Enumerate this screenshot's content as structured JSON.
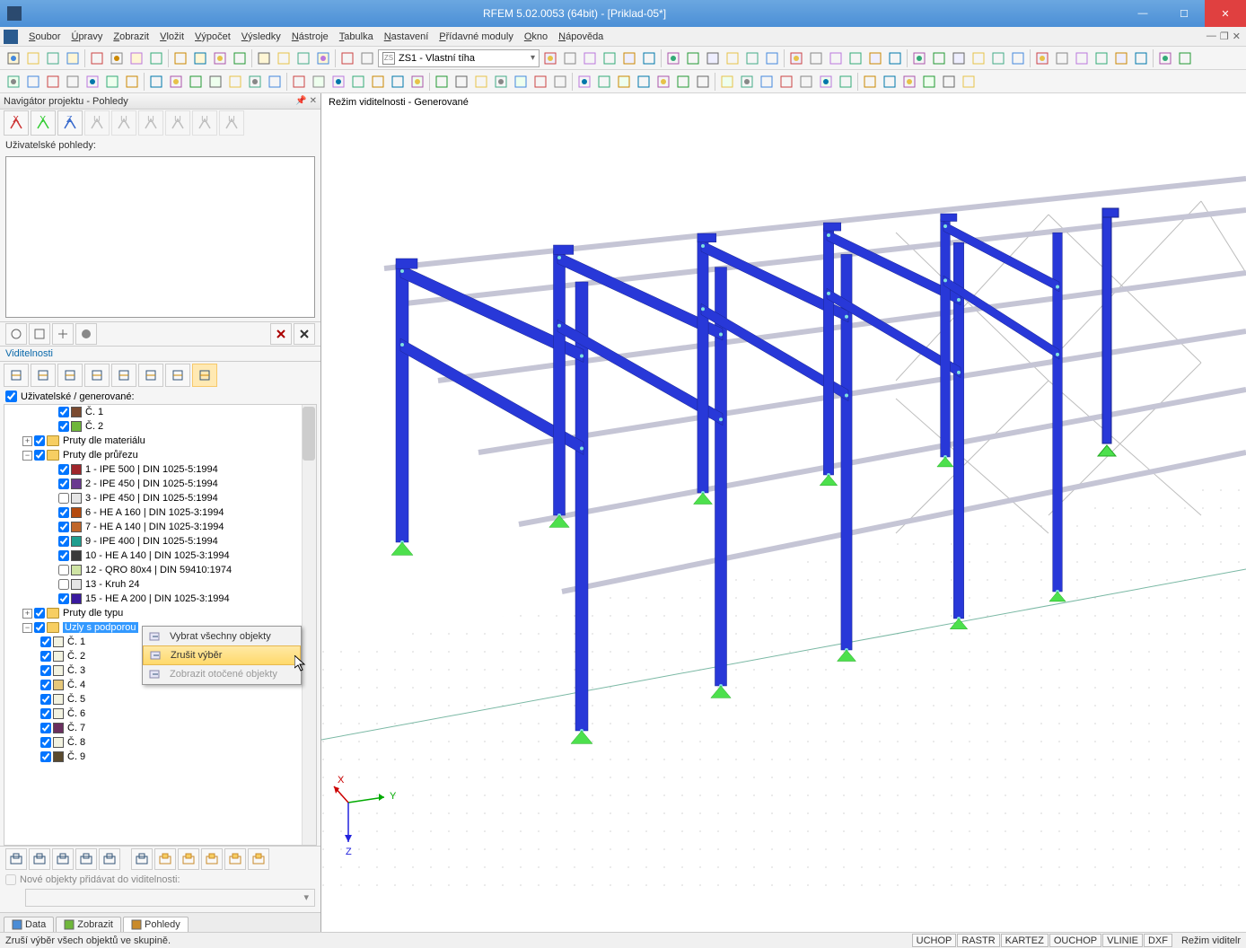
{
  "window": {
    "title": "RFEM 5.02.0053 (64bit) - [Priklad-05*]"
  },
  "menu": [
    "Soubor",
    "Úpravy",
    "Zobrazit",
    "Vložit",
    "Výpočet",
    "Výsledky",
    "Nástroje",
    "Tabulka",
    "Nastavení",
    "Přídavné moduly",
    "Okno",
    "Nápověda"
  ],
  "toolbar_dropdown": "ZS1 - Vlastní tíha",
  "navigator": {
    "title": "Navigátor projektu - Pohledy",
    "user_views_label": "Uživatelské pohledy:",
    "visibility_header": "Viditelnosti",
    "user_generated_label": "Uživatelské / generované:",
    "new_obj_label": "Nové objekty přidávat do viditelnosti:"
  },
  "tree": {
    "items": [
      {
        "depth": 3,
        "check": true,
        "swatch": "#7a4a2f",
        "label": "Č. 1"
      },
      {
        "depth": 3,
        "check": true,
        "swatch": "#6fb73a",
        "label": "Č. 2"
      },
      {
        "depth": 1,
        "expander": "+",
        "check": true,
        "folder": true,
        "label": "Pruty dle materiálu"
      },
      {
        "depth": 1,
        "expander": "−",
        "check": true,
        "folder": true,
        "label": "Pruty dle průřezu"
      },
      {
        "depth": 3,
        "check": true,
        "swatch": "#a0262b",
        "label": "1 - IPE 500 | DIN 1025-5:1994"
      },
      {
        "depth": 3,
        "check": true,
        "swatch": "#6a3a8f",
        "label": "2 - IPE 450 | DIN 1025-5:1994"
      },
      {
        "depth": 3,
        "check": false,
        "swatch": "#e5e5e5",
        "label": "3 - IPE 450 | DIN 1025-5:1994"
      },
      {
        "depth": 3,
        "check": true,
        "swatch": "#b44a0f",
        "label": "6 - HE A 160 | DIN 1025-3:1994"
      },
      {
        "depth": 3,
        "check": true,
        "swatch": "#c0662a",
        "label": "7 - HE A 140 | DIN 1025-3:1994"
      },
      {
        "depth": 3,
        "check": true,
        "swatch": "#1f9e8f",
        "label": "9 - IPE 400 | DIN 1025-5:1994"
      },
      {
        "depth": 3,
        "check": true,
        "swatch": "#3a3a3a",
        "label": "10 - HE A 140 | DIN 1025-3:1994"
      },
      {
        "depth": 3,
        "check": false,
        "swatch": "#cfe4a4",
        "label": "12 - QRO 80x4 | DIN 59410:1974"
      },
      {
        "depth": 3,
        "check": false,
        "swatch": "#e5e5e5",
        "label": "13 - Kruh 24"
      },
      {
        "depth": 3,
        "check": true,
        "swatch": "#3a1a9f",
        "label": "15 - HE A 200 | DIN 1025-3:1994"
      },
      {
        "depth": 1,
        "expander": "+",
        "check": true,
        "folder": true,
        "label": "Pruty dle typu"
      },
      {
        "depth": 1,
        "expander": "−",
        "check": true,
        "folder": true,
        "label": "Uzly s podporou",
        "selected": true
      },
      {
        "depth": 2,
        "check": true,
        "swatch": "#f2f2e0",
        "label": "Č. 1"
      },
      {
        "depth": 2,
        "check": true,
        "swatch": "#f2f2e0",
        "label": "Č. 2"
      },
      {
        "depth": 2,
        "check": true,
        "swatch": "#f2f2e0",
        "label": "Č. 3"
      },
      {
        "depth": 2,
        "check": true,
        "swatch": "#e6c77a",
        "label": "Č. 4"
      },
      {
        "depth": 2,
        "check": true,
        "swatch": "#f2f2e0",
        "label": "Č. 5"
      },
      {
        "depth": 2,
        "check": true,
        "swatch": "#f2f2e0",
        "label": "Č. 6"
      },
      {
        "depth": 2,
        "check": true,
        "swatch": "#6a2f5f",
        "label": "Č. 7"
      },
      {
        "depth": 2,
        "check": true,
        "swatch": "#f2f2e0",
        "label": "Č. 8"
      },
      {
        "depth": 2,
        "check": true,
        "swatch": "#5a4a2f",
        "label": "Č. 9"
      }
    ]
  },
  "context_menu": [
    {
      "label": "Vybrat všechny objekty",
      "state": "normal"
    },
    {
      "label": "Zrušit výběr",
      "state": "highlight"
    },
    {
      "label": "Zobrazit otočené objekty",
      "state": "disabled"
    }
  ],
  "tabs": [
    {
      "label": "Data"
    },
    {
      "label": "Zobrazit"
    },
    {
      "label": "Pohledy",
      "active": true
    }
  ],
  "viewport": {
    "mode_label": "Režim viditelnosti - Generované",
    "axis": {
      "x": "X",
      "y": "Y",
      "z": "Z"
    },
    "colors": {
      "beam": "#2838d8",
      "beam_shade": "#1a2590",
      "support": "#4de04d",
      "ground": "#e8e8e8",
      "wire": "#bdbdbd"
    }
  },
  "status": {
    "message": "Zruší výběr všech objektů ve skupině.",
    "boxes": [
      "UCHOP",
      "RASTR",
      "KARTEZ",
      "OUCHOP",
      "VLINIE",
      "DXF"
    ],
    "mode": "Režim viditelr"
  }
}
